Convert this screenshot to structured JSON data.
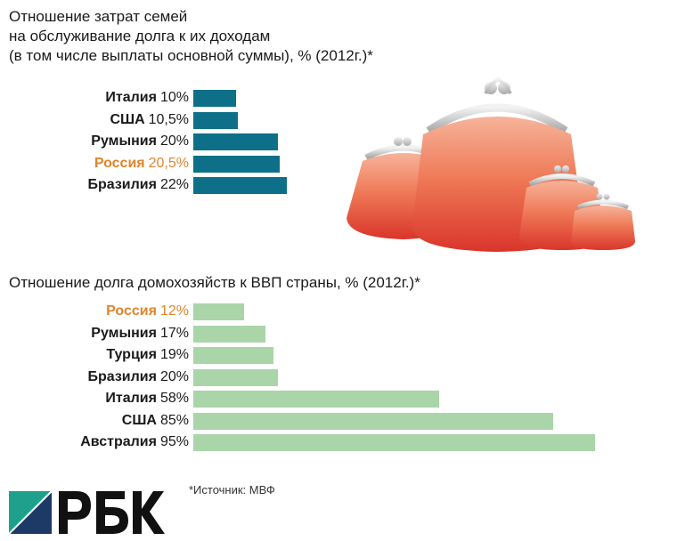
{
  "source": "*Источник: МВФ",
  "logo_text": "РБК",
  "colors": {
    "bar1": "#0e7088",
    "bar2": "#a9d5a8",
    "highlight": "#e2842c"
  },
  "chart_data": [
    {
      "type": "bar",
      "orientation": "horizontal",
      "title_lines": [
        "Отношение затрат семей",
        "на обслуживание долга к их доходам",
        "(в том числе выплаты основной суммы), % (2012г.)*"
      ],
      "categories": [
        "Италия",
        "США",
        "Румыния",
        "Россия",
        "Бразилия"
      ],
      "value_labels": [
        "10%",
        "10,5%",
        "20%",
        "20,5%",
        "22%"
      ],
      "values": [
        10,
        10.5,
        20,
        20.5,
        22
      ],
      "highlight": "Россия",
      "xlim": [
        0,
        100
      ]
    },
    {
      "type": "bar",
      "orientation": "horizontal",
      "title": "Отношение долга домохозяйств к ВВП страны, % (2012г.)*",
      "categories": [
        "Россия",
        "Румыния",
        "Турция",
        "Бразилия",
        "Италия",
        "США",
        "Австралия"
      ],
      "value_labels": [
        "12%",
        "17%",
        "19%",
        "20%",
        "58%",
        "85%",
        "95%"
      ],
      "values": [
        12,
        17,
        19,
        20,
        58,
        85,
        95
      ],
      "highlight": "Россия",
      "xlim": [
        0,
        100
      ]
    }
  ]
}
